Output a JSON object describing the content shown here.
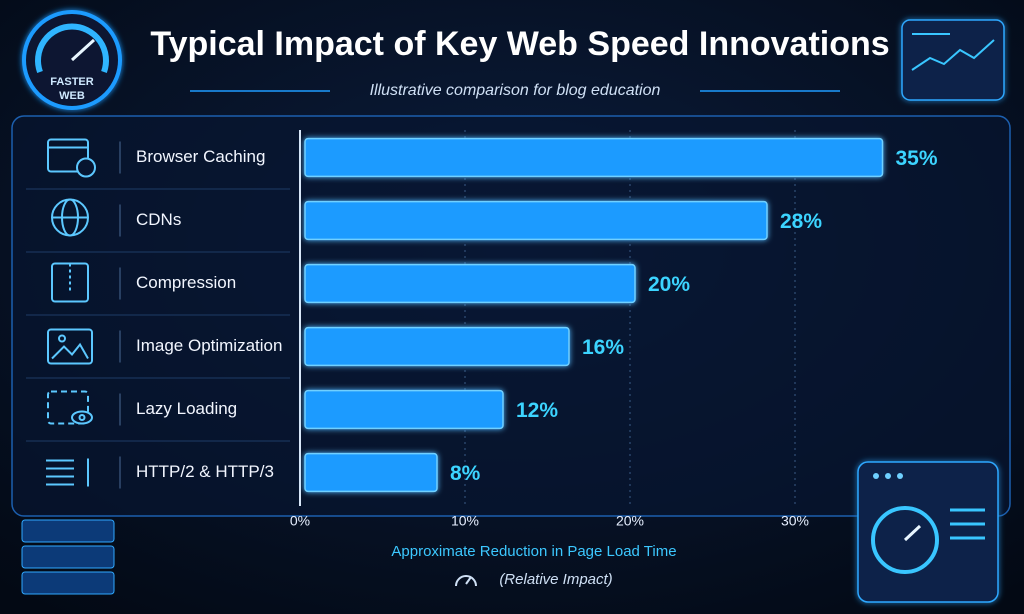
{
  "chart_data": {
    "type": "bar",
    "orientation": "horizontal",
    "title": "Typical Impact of Key Web Speed Innovations",
    "subtitle": "Illustrative comparison for blog education",
    "badge": [
      "FASTER",
      "WEB"
    ],
    "categories": [
      "Browser Caching",
      "CDNs",
      "Compression",
      "Image Optimization",
      "Lazy Loading",
      "HTTP/2 & HTTP/3"
    ],
    "values": [
      35,
      28,
      20,
      16,
      12,
      8
    ],
    "value_labels": [
      "35%",
      "28%",
      "20%",
      "16%",
      "12%",
      "8%"
    ],
    "color": "#1e9bff",
    "xlim": [
      0,
      40
    ],
    "xticks": [
      {
        "value": 0,
        "label": "0%"
      },
      {
        "value": 10,
        "label": "10%"
      },
      {
        "value": 20,
        "label": "20%"
      },
      {
        "value": 30,
        "label": "30%"
      }
    ],
    "grid": true,
    "xlabel": "Approximate Reduction in Page Load Time",
    "xlabel_note": "(Relative Impact)"
  }
}
